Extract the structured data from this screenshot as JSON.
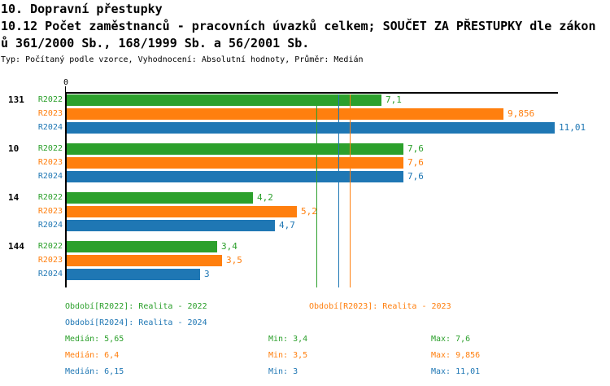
{
  "header": {
    "title": "10. Dopravní přestupky",
    "subtitle_line1": "10.12 Počet zaměstnanců - pracovních úvazků celkem; SOUČET ZA PŘESTUPKY dle zákon",
    "subtitle_line2": "ů 361/2000 Sb., 168/1999 Sb. a 56/2001 Sb.",
    "meta": "Typ: Počítaný podle vzorce, Vyhodnocení: Absolutní hodnoty, Průměr: Medián"
  },
  "colors": {
    "series_green": "#2ca02c",
    "series_orange": "#ff7f0e",
    "series_blue": "#1f77b4",
    "axis": "#000000",
    "background": "#ffffff"
  },
  "chart_data": {
    "type": "bar",
    "orientation": "horizontal",
    "title": "10.12 Počet zaměstnanců - pracovních úvazků celkem; SOUČET ZA PŘESTUPKY dle zákonů 361/2000 Sb., 168/1999 Sb. a 56/2001 Sb.",
    "x_axis": {
      "tick_labels": [
        "0"
      ],
      "range": [
        0,
        11.1
      ],
      "grid": false
    },
    "categories": [
      "131",
      "10",
      "14",
      "144"
    ],
    "series": [
      {
        "name": "R2022",
        "color": "#2ca02c",
        "values": [
          7.1,
          7.6,
          4.2,
          3.4
        ],
        "value_labels": [
          "7,1",
          "7,6",
          "4,2",
          "3,4"
        ],
        "median": 5.65
      },
      {
        "name": "R2023",
        "color": "#ff7f0e",
        "values": [
          9.856,
          7.6,
          5.2,
          3.5
        ],
        "value_labels": [
          "9,856",
          "7,6",
          "5,2",
          "3,5"
        ],
        "median": 6.4
      },
      {
        "name": "R2024",
        "color": "#1f77b4",
        "values": [
          11.01,
          7.6,
          4.7,
          3.0
        ],
        "value_labels": [
          "11,01",
          "7,6",
          "4,7",
          "3"
        ],
        "median": 6.15
      }
    ],
    "median_lines": [
      5.65,
      6.4,
      6.15
    ],
    "legend_position": "bottom"
  },
  "legend": {
    "items": [
      {
        "label": "Období[R2022]: Realita - 2022",
        "color": "#2ca02c"
      },
      {
        "label": "Období[R2023]: Realita - 2023",
        "color": "#ff7f0e"
      },
      {
        "label": "Období[R2024]: Realita - 2024",
        "color": "#1f77b4"
      }
    ]
  },
  "stats": {
    "rows": [
      {
        "median": "Medián: 5,65",
        "min": "Min: 3,4",
        "max": "Max: 7,6",
        "color": "#2ca02c"
      },
      {
        "median": "Medián: 6,4",
        "min": "Min: 3,5",
        "max": "Max: 9,856",
        "color": "#ff7f0e"
      },
      {
        "median": "Medián: 6,15",
        "min": "Min: 3",
        "max": "Max: 11,01",
        "color": "#1f77b4"
      }
    ]
  }
}
